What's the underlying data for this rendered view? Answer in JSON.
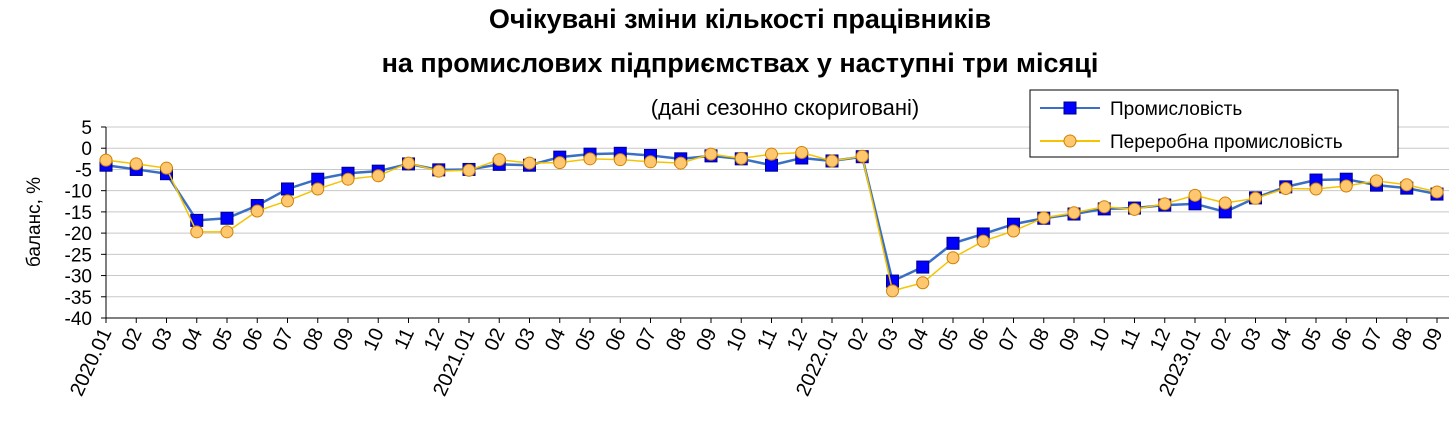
{
  "chart_data": {
    "type": "line",
    "title": [
      "Очікувані зміни кількості працівників",
      "на промислових підприємствах у наступні три місяці"
    ],
    "subtitle": "(дані сезонно скориговані)",
    "y_label": "баланс, %",
    "categories": [
      "2020.01",
      "02",
      "03",
      "04",
      "05",
      "06",
      "07",
      "08",
      "09",
      "10",
      "11",
      "12",
      "2021.01",
      "02",
      "03",
      "04",
      "05",
      "06",
      "07",
      "08",
      "09",
      "10",
      "11",
      "12",
      "2022.01",
      "02",
      "03",
      "04",
      "05",
      "06",
      "07",
      "08",
      "09",
      "10",
      "11",
      "12",
      "2023.01",
      "02",
      "03",
      "04",
      "05",
      "06",
      "07",
      "08",
      "09"
    ],
    "series": [
      {
        "name": "Промисловість",
        "color": "#3a6fc4",
        "marker_color": "#0000ff",
        "marker": "square",
        "values": [
          -4,
          -5,
          -6,
          -17,
          -16.5,
          -13.5,
          -9.6,
          -7.3,
          -5.9,
          -5.4,
          -3.7,
          -5.1,
          -5,
          -3.8,
          -4,
          -2.1,
          -1.4,
          -1.2,
          -1.7,
          -2.5,
          -1.8,
          -2.5,
          -4,
          -2.3,
          -3,
          -2,
          -31.3,
          -28,
          -22.4,
          -20.2,
          -17.9,
          -16.5,
          -15.5,
          -14.3,
          -14.1,
          -13.4,
          -13.1,
          -15,
          -11.7,
          -9.1,
          -7.5,
          -7.3,
          -8.7,
          -9.4,
          -10.8
        ]
      },
      {
        "name": "Переробна промисловість",
        "color": "#f5c400",
        "marker_color": "#ffc870",
        "marker": "circle",
        "values": [
          -2.8,
          -3.7,
          -4.7,
          -19.7,
          -19.7,
          -14.8,
          -12.4,
          -9.6,
          -7.3,
          -6.5,
          -3.5,
          -5.4,
          -5.2,
          -2.7,
          -3.5,
          -3.4,
          -2.5,
          -2.7,
          -3.2,
          -3.5,
          -1.4,
          -2.4,
          -1.4,
          -1,
          -3,
          -1.9,
          -33.6,
          -31.7,
          -25.8,
          -21.9,
          -19.5,
          -16.4,
          -15.2,
          -13.8,
          -14.4,
          -13.1,
          -11.1,
          -12.9,
          -11.8,
          -9.5,
          -9.6,
          -8.9,
          -7.7,
          -8.6,
          -10.3
        ]
      }
    ],
    "ylim": [
      -40,
      5
    ],
    "yticks": [
      5,
      0,
      -5,
      -10,
      -15,
      -20,
      -25,
      -30,
      -35,
      -40
    ],
    "grid": true,
    "legend": "top-right"
  }
}
